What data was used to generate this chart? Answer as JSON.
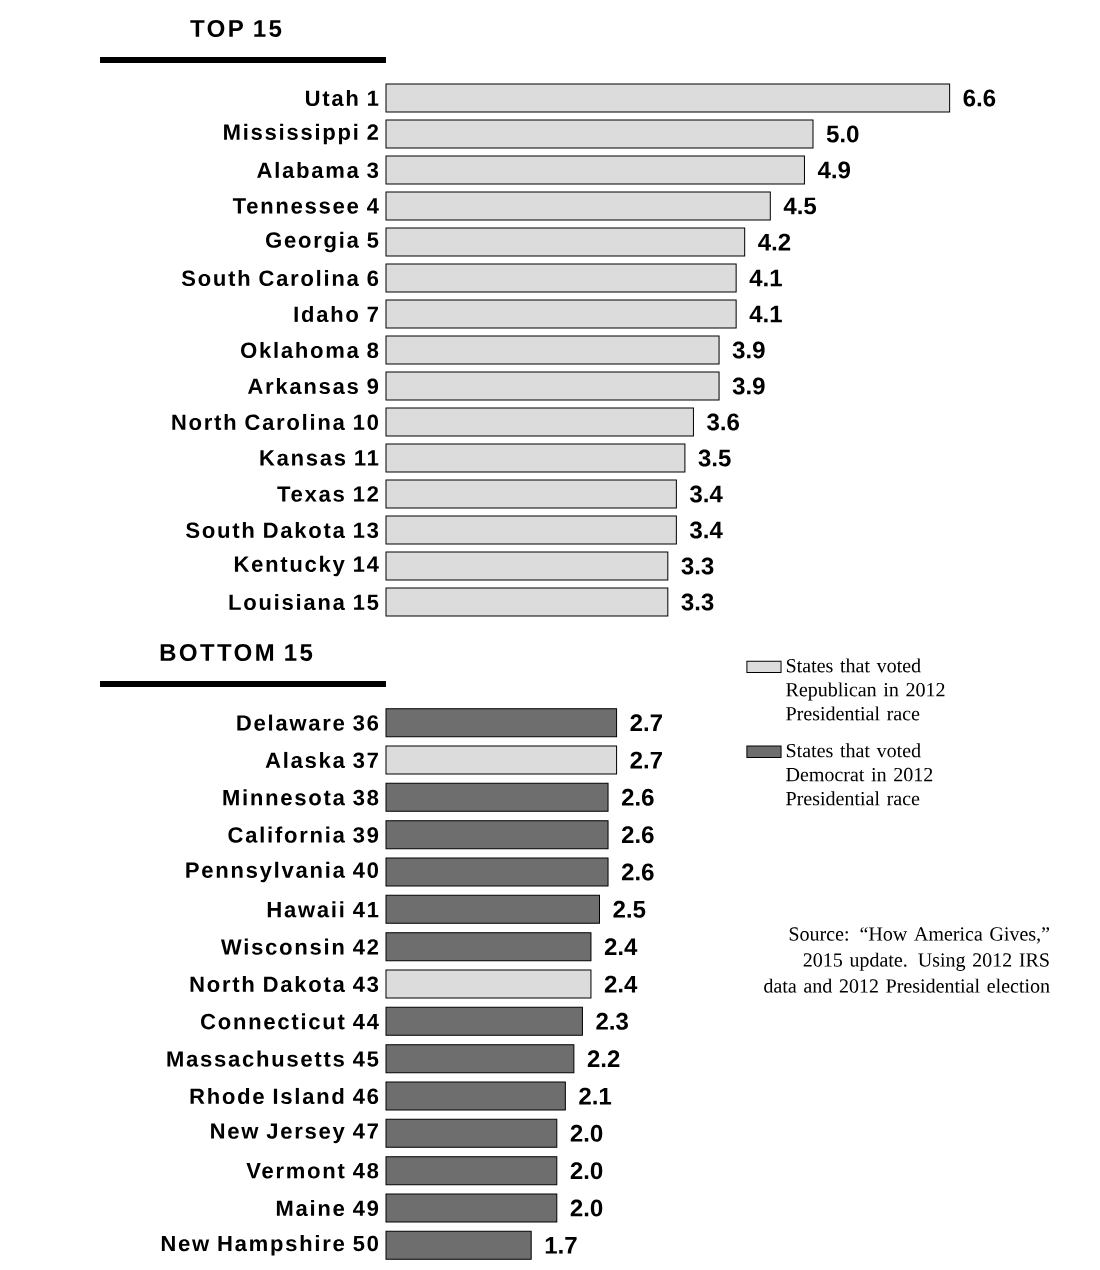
{
  "chart_data": [
    {
      "type": "bar",
      "orientation": "horizontal",
      "title": "TOP 15",
      "categories": [
        "Utah 1",
        "Mississippi 2",
        "Alabama 3",
        "Tennessee 4",
        "Georgia 5",
        "South Carolina 6",
        "Idaho 7",
        "Oklahoma 8",
        "Arkansas 9",
        "North Carolina 10",
        "Kansas 11",
        "Texas 12",
        "South Dakota 13",
        "Kentucky 14",
        "Louisiana 15"
      ],
      "values": [
        6.6,
        5.0,
        4.9,
        4.5,
        4.2,
        4.1,
        4.1,
        3.9,
        3.9,
        3.6,
        3.5,
        3.4,
        3.4,
        3.3,
        3.3
      ],
      "value_labels": [
        "6.6",
        "5.0",
        "4.9",
        "4.5",
        "4.2",
        "4.1",
        "4.1",
        "3.9",
        "3.9",
        "3.6",
        "3.5",
        "3.4",
        "3.4",
        "3.3",
        "3.3"
      ],
      "color": "#dcdcdc",
      "tick_labels": "y"
    },
    {
      "type": "bar",
      "orientation": "horizontal",
      "title": "BOTTOM 15",
      "categories": [
        "Delaware 36",
        "Alaska 37",
        "Minnesota 38",
        "California 39",
        "Pennsylvania 40",
        "Hawaii 41",
        "Wisconsin 42",
        "North Dakota 43",
        "Connecticut 44",
        "Massachusetts 45",
        "Rhode Island 46",
        "New Jersey 47",
        "Vermont 48",
        "Maine 49",
        "New Hampshire 50"
      ],
      "series": [
        {
          "name": "States that voted Republican in 2012 Presidential race",
          "color": "#dcdcdc",
          "values": [
            null,
            2.7,
            null,
            null,
            null,
            null,
            null,
            2.4,
            null,
            null,
            null,
            null,
            null,
            null,
            null
          ],
          "value_labels": [
            null,
            "2.7",
            null,
            null,
            null,
            null,
            null,
            "2.4",
            null,
            null,
            null,
            null,
            null,
            null,
            null
          ]
        },
        {
          "name": "States that voted Democrat in 2012 Presidential race",
          "color": "#6e6e6e",
          "values": [
            2.7,
            null,
            2.6,
            2.6,
            2.6,
            2.5,
            2.4,
            null,
            2.3,
            2.2,
            2.1,
            2.0,
            2.0,
            2.0,
            1.7
          ],
          "value_labels": [
            "2.7",
            null,
            "2.6",
            "2.6",
            "2.6",
            "2.5",
            "2.4",
            null,
            "2.3",
            "2.2",
            "2.1",
            "2.0",
            "2.0",
            "2.0",
            "1.7"
          ]
        }
      ],
      "tick_labels": "y",
      "legend": "top right",
      "annotations": [
        "Source: “How America Gives,” 2015 update. Using 2012 IRS data and 2012 Presidential election"
      ]
    }
  ]
}
